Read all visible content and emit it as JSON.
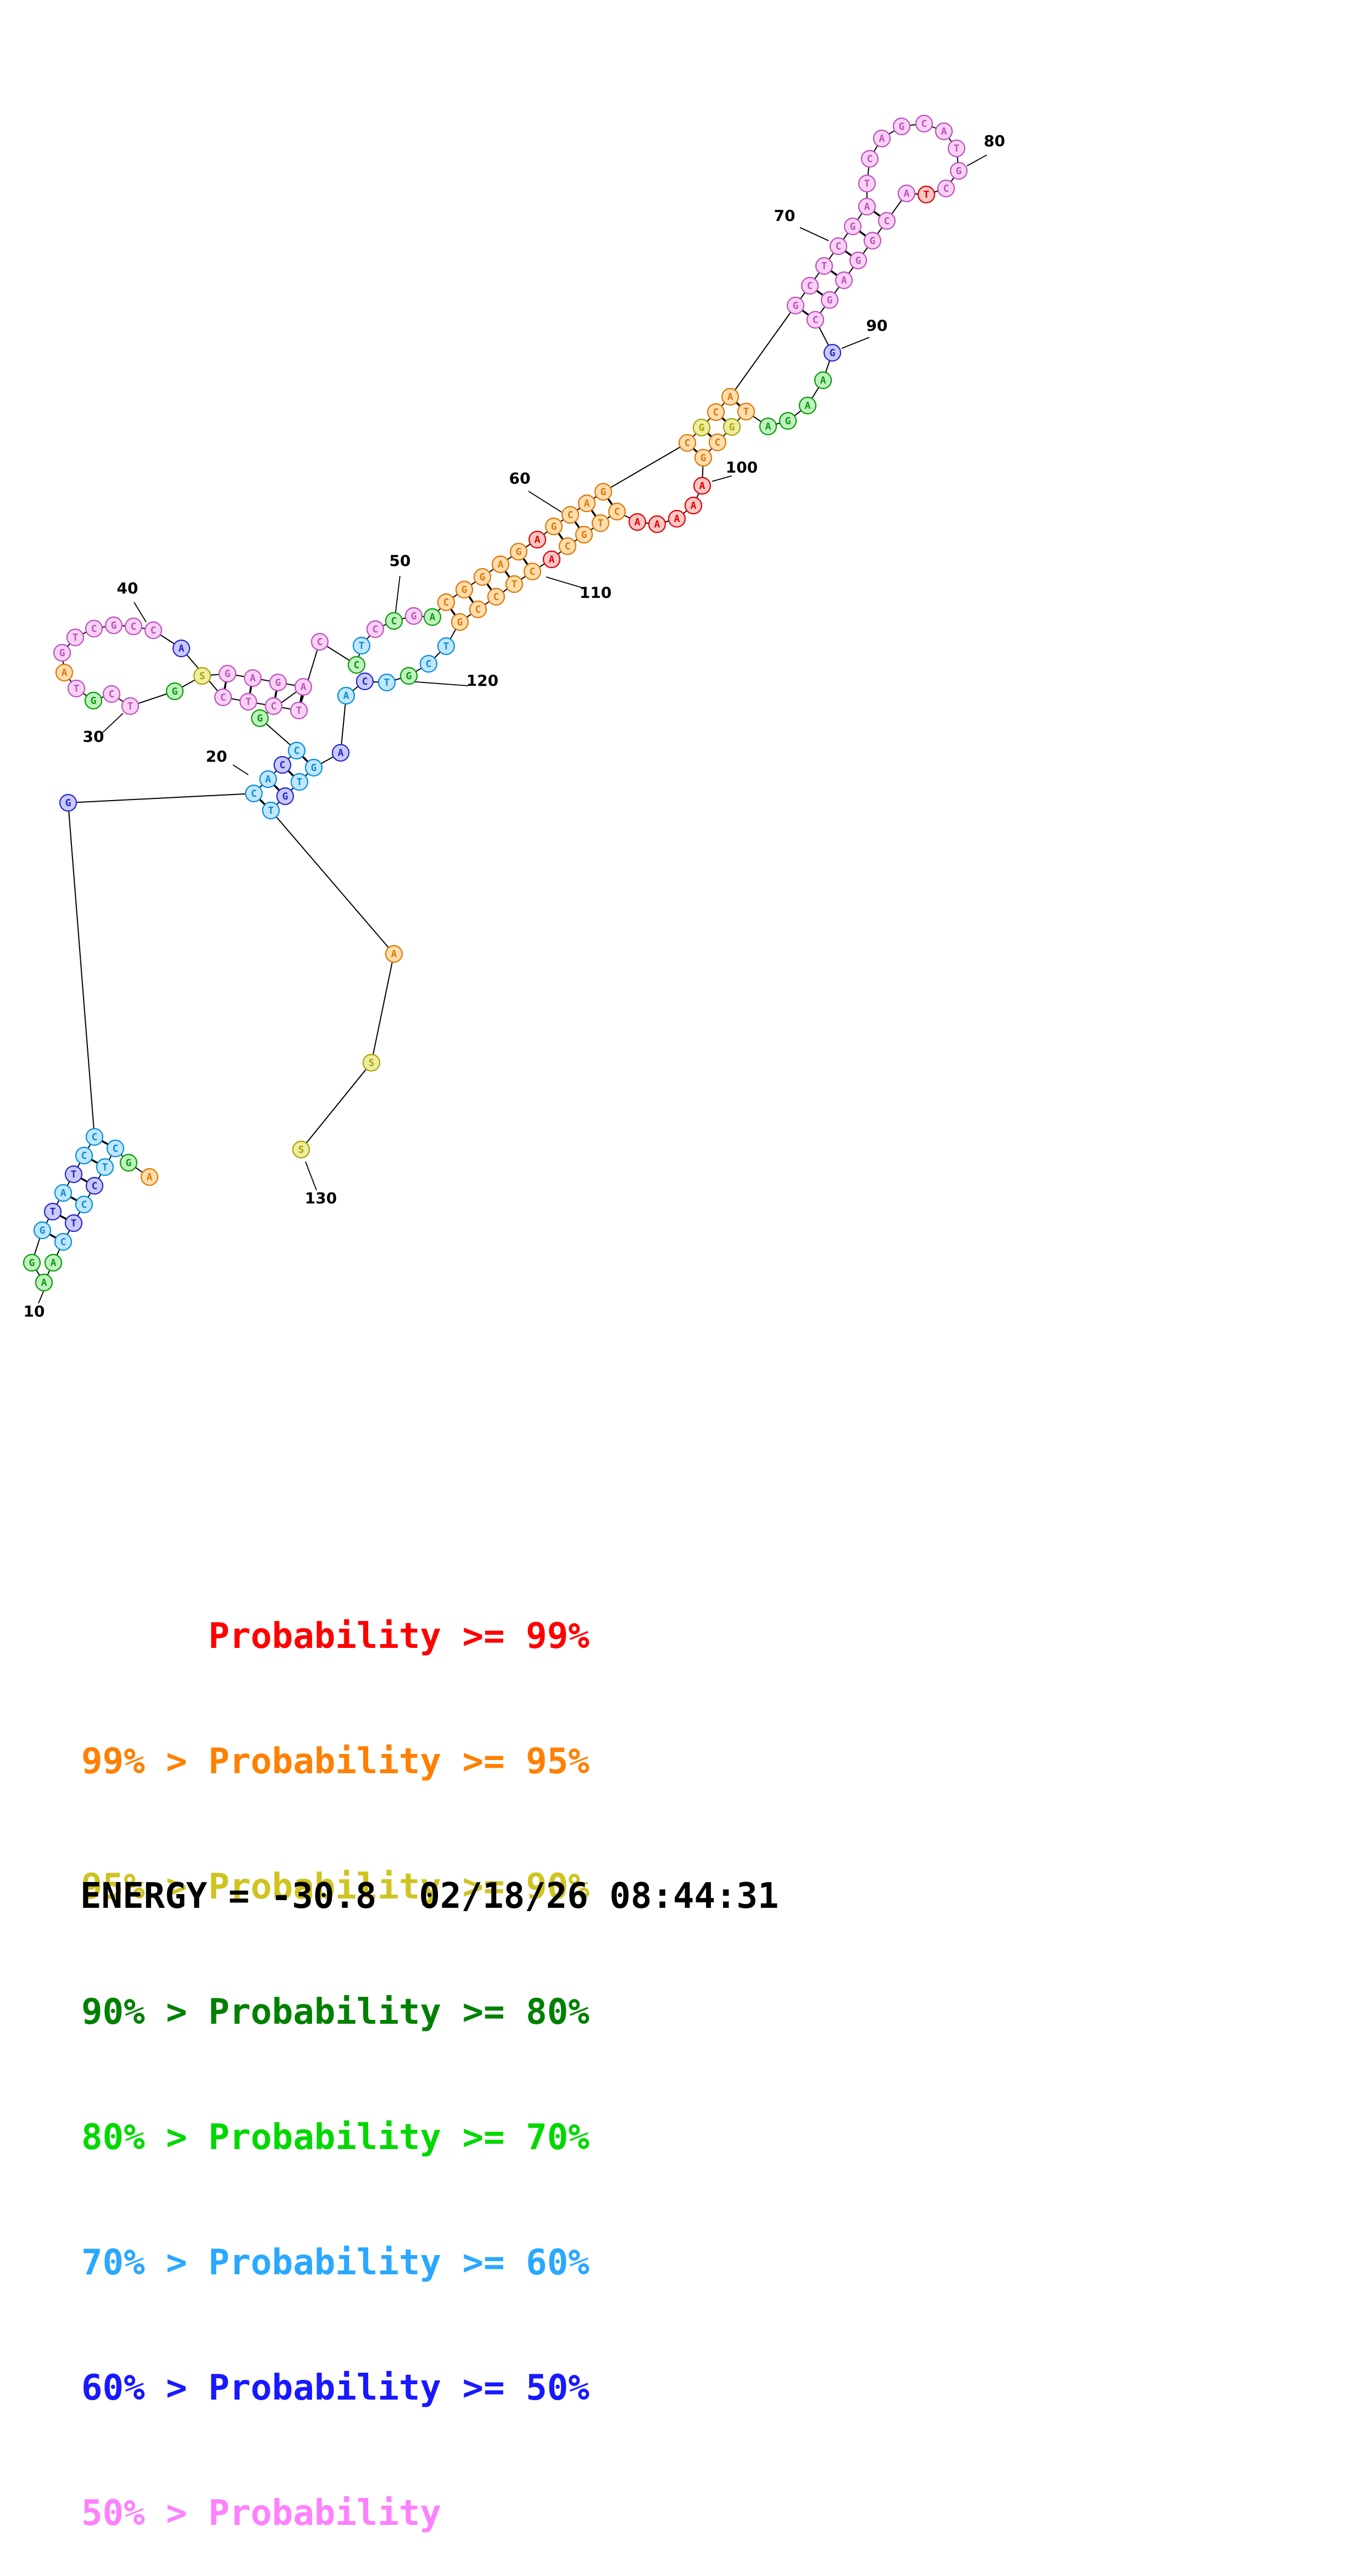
{
  "classes": {
    "p99": {
      "fill": "#ffc6c6",
      "stroke": "#e00000"
    },
    "p95": {
      "fill": "#ffddae",
      "stroke": "#e07800"
    },
    "p90": {
      "fill": "#f0eda2",
      "stroke": "#a8a400"
    },
    "p80": {
      "fill": "#b8e0b8",
      "stroke": "#007000"
    },
    "p70": {
      "fill": "#c2f0c2",
      "stroke": "#00a000"
    },
    "p60": {
      "fill": "#c2e6fa",
      "stroke": "#0090e0"
    },
    "p50": {
      "fill": "#cacafa",
      "stroke": "#2424d0"
    },
    "plt50": {
      "fill": "#f8d2f4",
      "stroke": "#c050c0"
    }
  },
  "structure": {
    "nucleotides": [
      [
        272,
        2142,
        "A",
        "p95"
      ],
      [
        234,
        2116,
        "G",
        "p70"
      ],
      [
        210,
        2090,
        "C",
        "p60"
      ],
      [
        191,
        2124,
        "T",
        "p60"
      ],
      [
        172,
        2158,
        "C",
        "p50"
      ],
      [
        153,
        2192,
        "C",
        "p60"
      ],
      [
        134,
        2226,
        "T",
        "p50"
      ],
      [
        115,
        2260,
        "C",
        "p60"
      ],
      [
        97,
        2298,
        "A",
        "p70"
      ],
      [
        80,
        2334,
        "A",
        "p70"
      ],
      [
        58,
        2298,
        "G",
        "p70"
      ],
      [
        77,
        2239,
        "G",
        "p60"
      ],
      [
        96,
        2205,
        "T",
        "p50"
      ],
      [
        115,
        2171,
        "A",
        "p60"
      ],
      [
        134,
        2137,
        "T",
        "p50"
      ],
      [
        153,
        2103,
        "C",
        "p60"
      ],
      [
        172,
        2069,
        "C",
        "p60"
      ],
      [
        124,
        1461,
        "G",
        "p50"
      ],
      [
        462,
        1444,
        "C",
        "p60"
      ],
      [
        488,
        1418,
        "A",
        "p60"
      ],
      [
        514,
        1392,
        "C",
        "p50"
      ],
      [
        540,
        1366,
        "C",
        "p60"
      ],
      [
        473,
        1307,
        "G",
        "p70"
      ],
      [
        552,
        1250,
        "A",
        "plt50"
      ],
      [
        506,
        1242,
        "G",
        "plt50"
      ],
      [
        460,
        1234,
        "A",
        "plt50"
      ],
      [
        414,
        1226,
        "G",
        "plt50"
      ],
      [
        368,
        1230,
        "S",
        "p90"
      ],
      [
        318,
        1258,
        "G",
        "p70"
      ],
      [
        237,
        1285,
        "T",
        "plt50"
      ],
      [
        203,
        1263,
        "C",
        "plt50"
      ],
      [
        170,
        1275,
        "G",
        "p70"
      ],
      [
        139,
        1253,
        "T",
        "plt50"
      ],
      [
        117,
        1224,
        "A",
        "p95"
      ],
      [
        113,
        1188,
        "G",
        "plt50"
      ],
      [
        137,
        1160,
        "T",
        "plt50"
      ],
      [
        171,
        1144,
        "C",
        "plt50"
      ],
      [
        207,
        1138,
        "G",
        "plt50"
      ],
      [
        243,
        1140,
        "C",
        "plt50"
      ],
      [
        279,
        1147,
        "C",
        "plt50"
      ],
      [
        330,
        1180,
        "A",
        "p50"
      ],
      [
        406,
        1269,
        "C",
        "plt50"
      ],
      [
        452,
        1277,
        "T",
        "plt50"
      ],
      [
        498,
        1285,
        "C",
        "plt50"
      ],
      [
        544,
        1293,
        "T",
        "plt50"
      ],
      [
        582,
        1168,
        "C",
        "plt50"
      ],
      [
        649,
        1210,
        "C",
        "p70"
      ],
      [
        658,
        1175,
        "T",
        "p60"
      ],
      [
        683,
        1145,
        "C",
        "plt50"
      ],
      [
        717,
        1130,
        "C",
        "p70"
      ],
      [
        753,
        1121,
        "G",
        "plt50"
      ],
      [
        787,
        1123,
        "A",
        "p70"
      ],
      [
        812,
        1096,
        "C",
        "p95"
      ],
      [
        845,
        1073,
        "G",
        "p95"
      ],
      [
        878,
        1050,
        "G",
        "p95"
      ],
      [
        911,
        1027,
        "A",
        "p95"
      ],
      [
        944,
        1004,
        "G",
        "p95"
      ],
      [
        978,
        982,
        "A",
        "p99"
      ],
      [
        1008,
        958,
        "G",
        "p95"
      ],
      [
        1038,
        937,
        "C",
        "p95"
      ],
      [
        1068,
        916,
        "A",
        "p95"
      ],
      [
        1098,
        895,
        "G",
        "p95"
      ],
      [
        1251,
        806,
        "C",
        "p95"
      ],
      [
        1277,
        778,
        "G",
        "p90"
      ],
      [
        1303,
        750,
        "C",
        "p95"
      ],
      [
        1329,
        722,
        "A",
        "p95"
      ],
      [
        1448,
        556,
        "G",
        "plt50"
      ],
      [
        1474,
        520,
        "C",
        "plt50"
      ],
      [
        1500,
        484,
        "T",
        "plt50"
      ],
      [
        1526,
        448,
        "C",
        "plt50"
      ],
      [
        1552,
        412,
        "G",
        "plt50"
      ],
      [
        1578,
        376,
        "A",
        "plt50"
      ],
      [
        1578,
        334,
        "T",
        "plt50"
      ],
      [
        1583,
        289,
        "C",
        "plt50"
      ],
      [
        1605,
        252,
        "A",
        "plt50"
      ],
      [
        1641,
        230,
        "G",
        "plt50"
      ],
      [
        1682,
        225,
        "C",
        "plt50"
      ],
      [
        1718,
        239,
        "A",
        "plt50"
      ],
      [
        1741,
        270,
        "T",
        "plt50"
      ],
      [
        1745,
        311,
        "G",
        "plt50"
      ],
      [
        1722,
        343,
        "C",
        "plt50"
      ],
      [
        1686,
        354,
        "T",
        "p99"
      ],
      [
        1650,
        352,
        "A",
        "plt50"
      ],
      [
        1614,
        402,
        "C",
        "plt50"
      ],
      [
        1588,
        438,
        "G",
        "plt50"
      ],
      [
        1562,
        474,
        "G",
        "plt50"
      ],
      [
        1536,
        510,
        "A",
        "plt50"
      ],
      [
        1510,
        546,
        "G",
        "plt50"
      ],
      [
        1484,
        582,
        "C",
        "plt50"
      ],
      [
        1515,
        642,
        "G",
        "p50"
      ],
      [
        1498,
        692,
        "A",
        "p70"
      ],
      [
        1470,
        738,
        "A",
        "p70"
      ],
      [
        1434,
        766,
        "G",
        "p70"
      ],
      [
        1398,
        776,
        "A",
        "p70"
      ],
      [
        1358,
        749,
        "T",
        "p95"
      ],
      [
        1332,
        777,
        "G",
        "p90"
      ],
      [
        1306,
        805,
        "C",
        "p95"
      ],
      [
        1280,
        833,
        "G",
        "p95"
      ],
      [
        1278,
        884,
        "A",
        "p99"
      ],
      [
        1262,
        920,
        "A",
        "p99"
      ],
      [
        1232,
        944,
        "A",
        "p99"
      ],
      [
        1196,
        954,
        "A",
        "p99"
      ],
      [
        1160,
        950,
        "A",
        "p99"
      ],
      [
        1123,
        931,
        "C",
        "p95"
      ],
      [
        1093,
        952,
        "T",
        "p95"
      ],
      [
        1063,
        973,
        "G",
        "p95"
      ],
      [
        1033,
        994,
        "C",
        "p95"
      ],
      [
        1004,
        1018,
        "A",
        "p99"
      ],
      [
        969,
        1040,
        "C",
        "p95"
      ],
      [
        936,
        1063,
        "T",
        "p95"
      ],
      [
        903,
        1086,
        "C",
        "p95"
      ],
      [
        870,
        1109,
        "C",
        "p95"
      ],
      [
        837,
        1132,
        "G",
        "p95"
      ],
      [
        812,
        1176,
        "T",
        "p60"
      ],
      [
        780,
        1208,
        "C",
        "p60"
      ],
      [
        744,
        1230,
        "G",
        "p70"
      ],
      [
        704,
        1242,
        "T",
        "p60"
      ],
      [
        664,
        1240,
        "C",
        "p50"
      ],
      [
        630,
        1266,
        "A",
        "p60"
      ],
      [
        620,
        1370,
        "A",
        "p50"
      ],
      [
        571,
        1397,
        "G",
        "p60"
      ],
      [
        545,
        1423,
        "T",
        "p60"
      ],
      [
        519,
        1449,
        "G",
        "p50"
      ],
      [
        493,
        1475,
        "T",
        "p60"
      ],
      [
        717,
        1736,
        "A",
        "p95"
      ],
      [
        676,
        1934,
        "S",
        "p90"
      ],
      [
        548,
        2092,
        "S",
        "p90"
      ]
    ],
    "pairs": [
      [
        3,
        17
      ],
      [
        4,
        16
      ],
      [
        5,
        15
      ],
      [
        6,
        14
      ],
      [
        7,
        13
      ],
      [
        8,
        12
      ],
      [
        19,
        124
      ],
      [
        20,
        123
      ],
      [
        21,
        122
      ],
      [
        22,
        121
      ],
      [
        24,
        45
      ],
      [
        25,
        44
      ],
      [
        26,
        43
      ],
      [
        27,
        42
      ],
      [
        53,
        113
      ],
      [
        54,
        112
      ],
      [
        55,
        111
      ],
      [
        56,
        110
      ],
      [
        57,
        109
      ],
      [
        59,
        107
      ],
      [
        60,
        106
      ],
      [
        61,
        105
      ],
      [
        62,
        104
      ],
      [
        63,
        98
      ],
      [
        64,
        97
      ],
      [
        65,
        96
      ],
      [
        66,
        95
      ],
      [
        67,
        89
      ],
      [
        68,
        88
      ],
      [
        69,
        87
      ],
      [
        70,
        86
      ],
      [
        71,
        85
      ],
      [
        72,
        84
      ]
    ],
    "labels": [
      [
        "10",
        62,
        2396,
        70,
        2372,
        80,
        2348
      ],
      [
        "20",
        394,
        1386,
        424,
        1392,
        452,
        1410
      ],
      [
        "30",
        170,
        1350,
        186,
        1334,
        224,
        1298
      ],
      [
        "40",
        232,
        1080,
        244,
        1096,
        266,
        1132
      ],
      [
        "50",
        728,
        1030,
        728,
        1048,
        720,
        1114
      ],
      [
        "60",
        946,
        880,
        962,
        894,
        1022,
        932
      ],
      [
        "70",
        1428,
        402,
        1456,
        414,
        1508,
        438
      ],
      [
        "80",
        1810,
        266,
        1796,
        282,
        1760,
        302
      ],
      [
        "90",
        1596,
        602,
        1582,
        614,
        1532,
        634
      ],
      [
        "100",
        1350,
        860,
        1332,
        866,
        1296,
        876
      ],
      [
        "110",
        1084,
        1088,
        1068,
        1072,
        994,
        1050
      ],
      [
        "120",
        878,
        1248,
        852,
        1248,
        744,
        1240
      ],
      [
        "130",
        584,
        2190,
        576,
        2166,
        556,
        2114
      ]
    ]
  },
  "legend": {
    "lines": [
      {
        "text": "      Probability >= 99%",
        "color": "#ff0000"
      },
      {
        "text": "99% > Probability >= 95%",
        "color": "#ff8000"
      },
      {
        "text": "95% > Probability >= 90%",
        "color": "#cfc420"
      },
      {
        "text": "90% > Probability >= 80%",
        "color": "#008000"
      },
      {
        "text": "80% > Probability >= 70%",
        "color": "#00d800"
      },
      {
        "text": "70% > Probability >= 60%",
        "color": "#2aa8ff"
      },
      {
        "text": "60% > Probability >= 50%",
        "color": "#1919ff"
      },
      {
        "text": "50% > Probability",
        "color": "#ff80ff"
      }
    ]
  },
  "energy_line": "ENERGY = -30.8  02/18/26 08:44:31"
}
